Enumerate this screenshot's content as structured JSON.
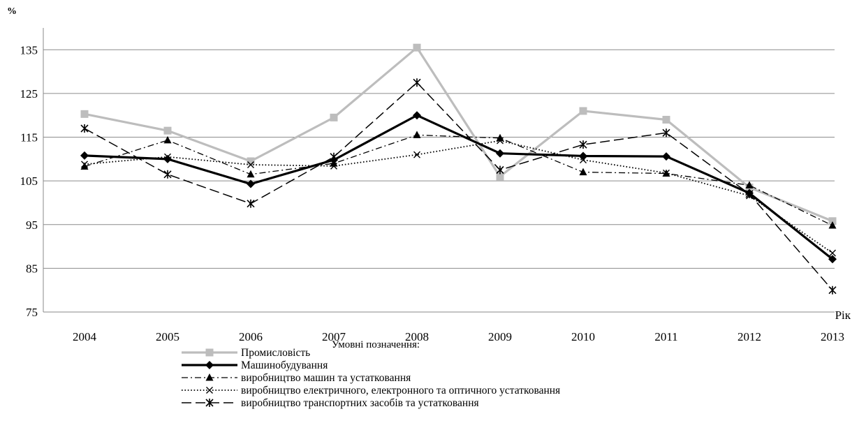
{
  "chart_data": {
    "type": "line",
    "y_unit_label": "%",
    "x_axis_label": "Рік",
    "legend_title": "Умовні позначення:",
    "x": [
      "2004",
      "2005",
      "2006",
      "2007",
      "2008",
      "2009",
      "2010",
      "2011",
      "2012",
      "2013"
    ],
    "ylim": [
      75,
      140
    ],
    "yticks": [
      75,
      85,
      95,
      105,
      115,
      125,
      135
    ],
    "grid": "horizontal",
    "legend_position": "bottom-center",
    "series": [
      {
        "name": "Промисловість",
        "color": "#bdbdbd",
        "line_style": "solid-thick",
        "marker": "square",
        "values": [
          120.3,
          116.5,
          109.5,
          119.5,
          135.5,
          106.0,
          121.0,
          119.0,
          103.5,
          95.8
        ]
      },
      {
        "name": "Машинобудування",
        "color": "#000000",
        "line_style": "solid-thick",
        "marker": "diamond",
        "values": [
          110.8,
          110.0,
          104.3,
          109.8,
          120.0,
          111.3,
          110.7,
          110.6,
          102.2,
          87.1
        ]
      },
      {
        "name": "виробництво машин та устатковання",
        "color": "#000000",
        "line_style": "dash-dot",
        "marker": "triangle",
        "values": [
          108.3,
          114.3,
          106.5,
          109.0,
          115.5,
          114.8,
          107.0,
          106.7,
          104.0,
          94.8
        ]
      },
      {
        "name": "виробництво електричного, електронного та оптичного устатковання",
        "color": "#000000",
        "line_style": "dotted",
        "marker": "x",
        "values": [
          108.8,
          110.5,
          108.7,
          108.4,
          111.0,
          114.2,
          109.8,
          106.8,
          101.6,
          88.5
        ]
      },
      {
        "name": "виробництво транспортних засобів та устатковання",
        "color": "#000000",
        "line_style": "long-dash",
        "marker": "star",
        "values": [
          117.0,
          106.5,
          99.8,
          110.5,
          127.5,
          107.5,
          113.3,
          116.0,
          102.0,
          80.0
        ]
      }
    ]
  }
}
